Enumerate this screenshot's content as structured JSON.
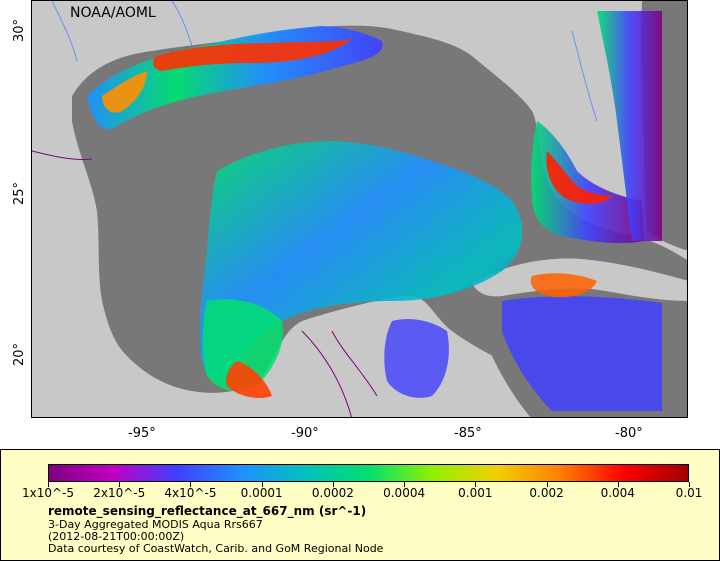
{
  "credit": "NOAA/AOML",
  "axes": {
    "x_ticks": [
      "-95°",
      "-90°",
      "-85°",
      "-80°"
    ],
    "y_ticks": [
      "30°",
      "25°",
      "20°"
    ]
  },
  "legend": {
    "ticks": [
      "1x10^-5",
      "2x10^-5",
      "4x10^-5",
      "0.0001",
      "0.0002",
      "0.0004",
      "0.001",
      "0.002",
      "0.004",
      "0.01"
    ],
    "title": "remote_sensing_reflectance_at_667_nm (sr^-1)",
    "line1": "3-Day Aggregated MODIS Aqua Rrs667",
    "line2": "(2012-08-21T00:00:00Z)",
    "line3": "Data courtesy of CoastWatch, Carib. and GoM Regional Node",
    "colors": [
      "#800080",
      "#c000c0",
      "#4040ff",
      "#1e90ff",
      "#00c0c0",
      "#00e070",
      "#90f000",
      "#f0d000",
      "#ff8000",
      "#ff0000",
      "#a00000"
    ]
  },
  "map": {
    "land_color": "#c8c8c8",
    "ocean_nodata_color": "#787878",
    "border_color": "#800080",
    "river_color": "#6495ed"
  }
}
